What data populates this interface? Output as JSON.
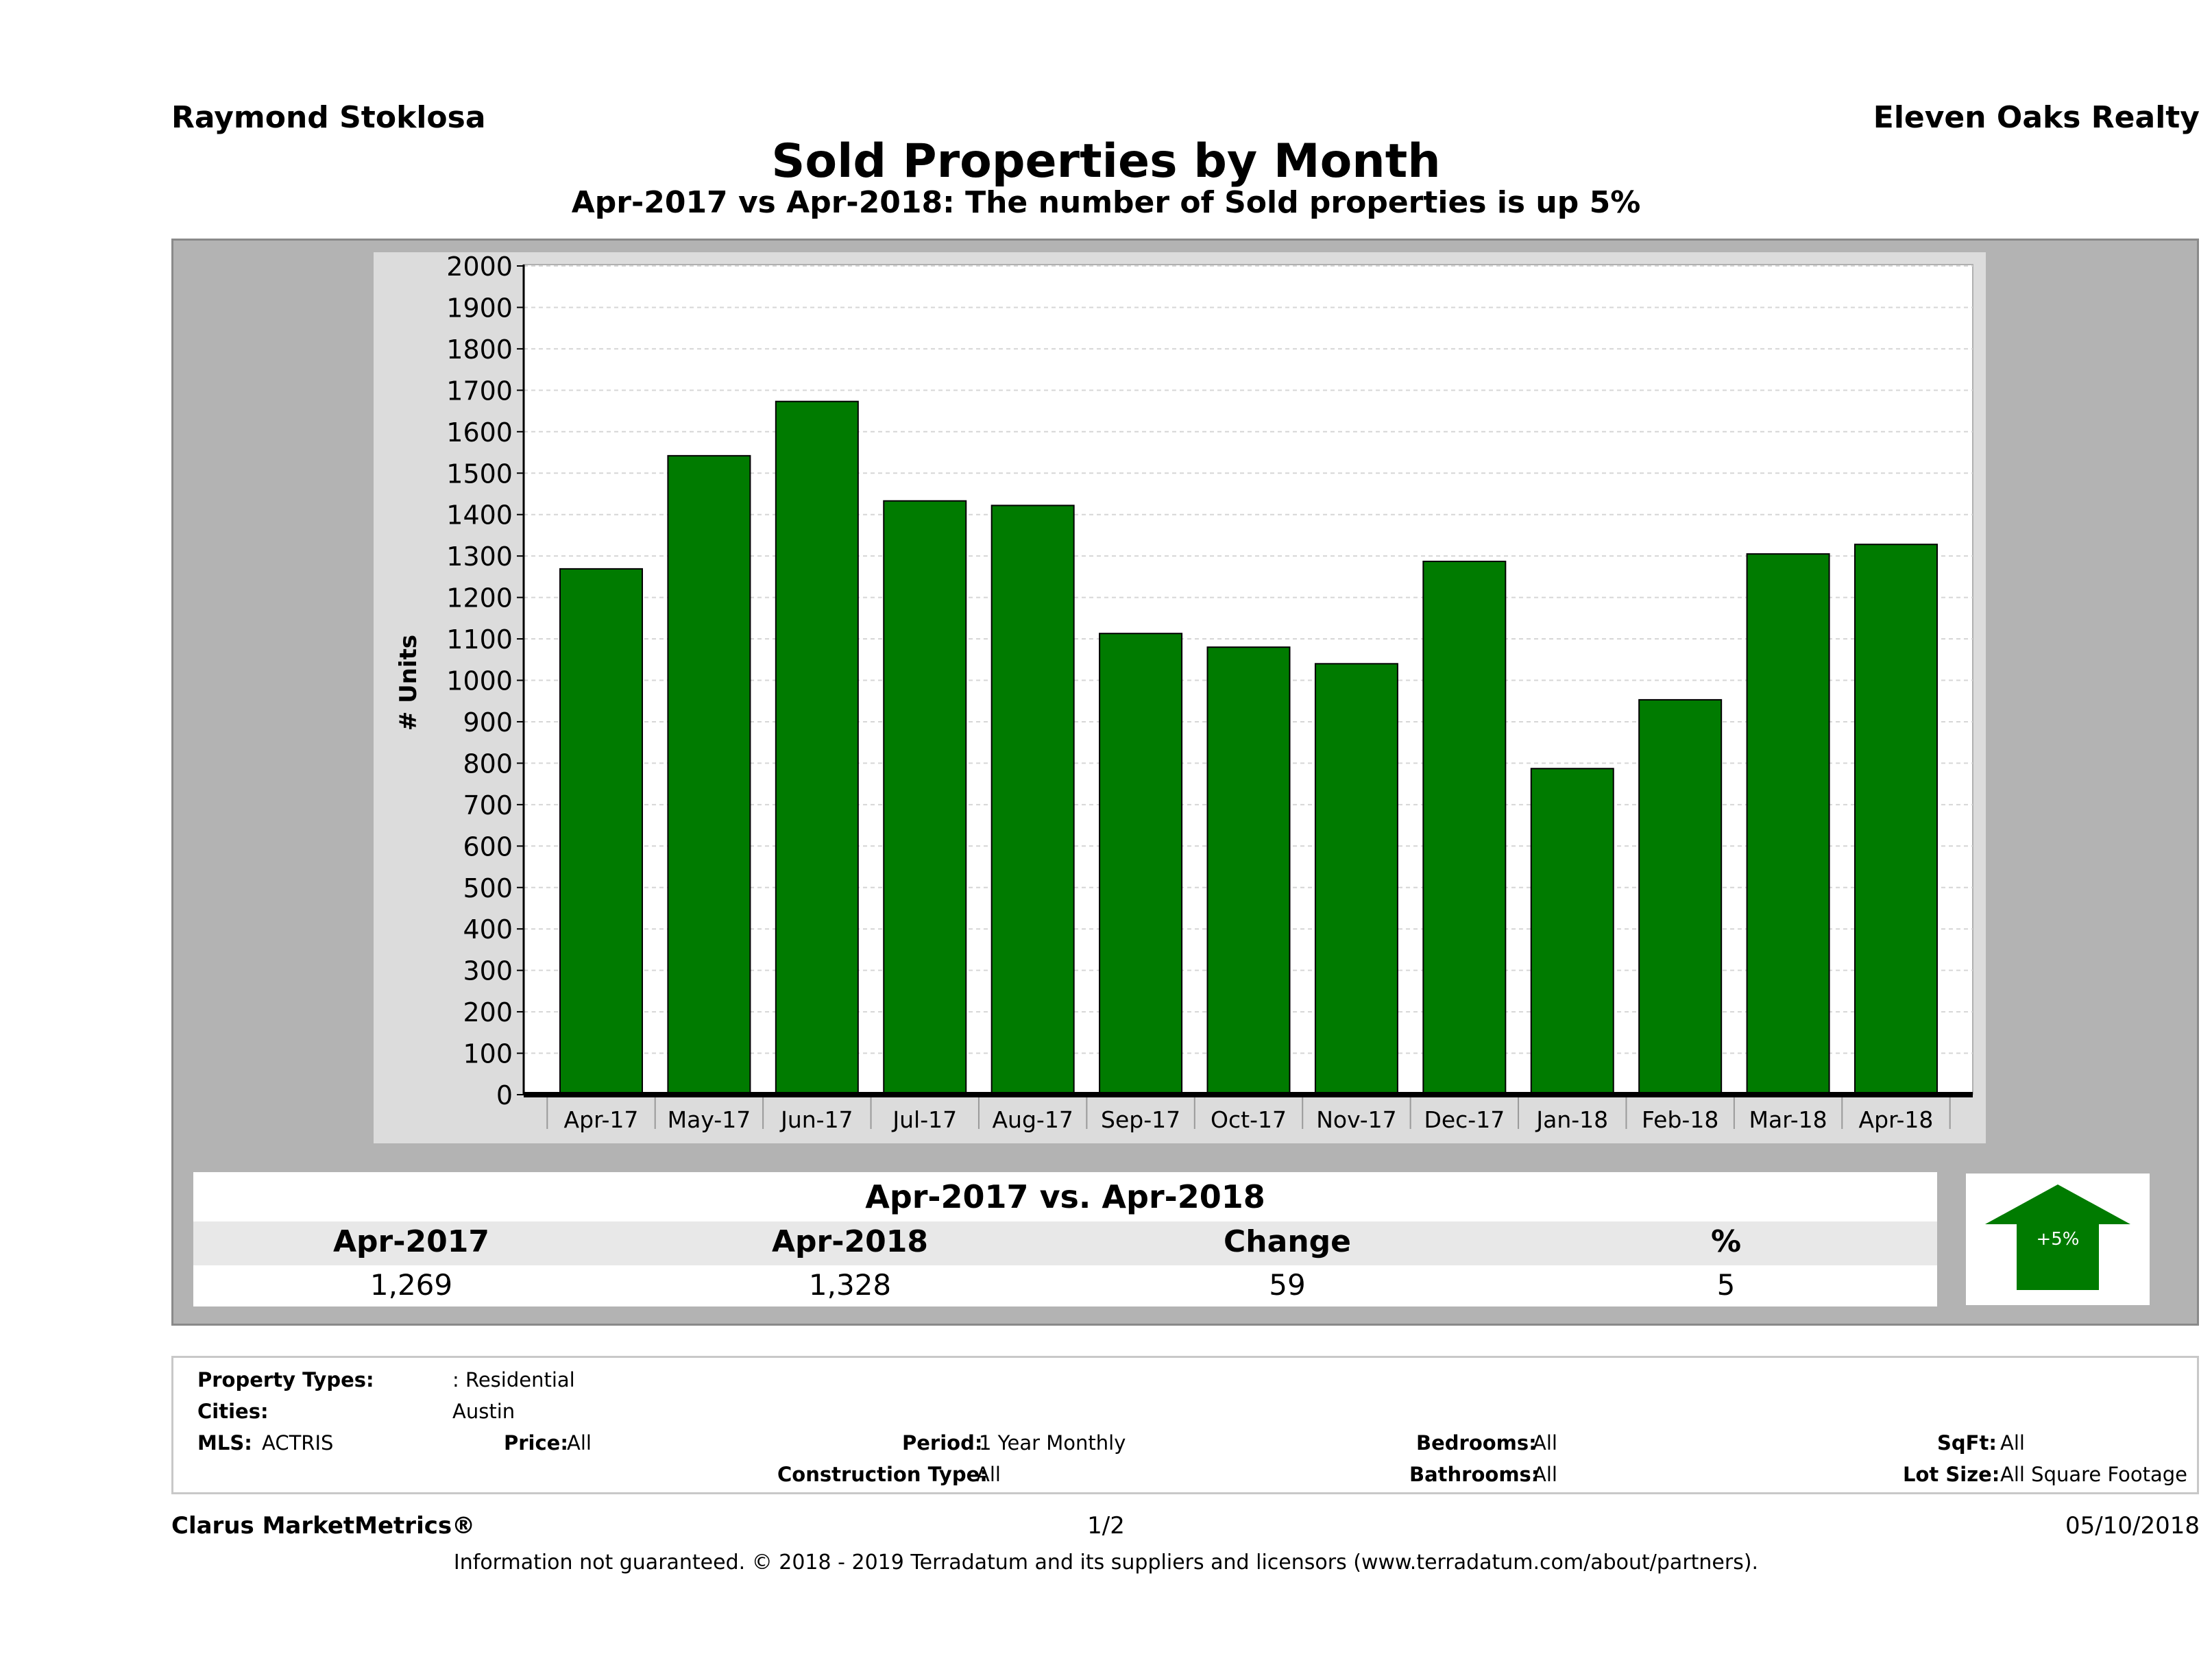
{
  "header": {
    "agent": "Raymond Stoklosa",
    "brand": "Eleven Oaks Realty",
    "title": "Sold Properties by Month",
    "subtitle": "Apr-2017 vs Apr-2018: The number of Sold  properties is up 5%"
  },
  "chart_data": {
    "type": "bar",
    "title": "Sold Properties by Month",
    "ylabel": "# Units",
    "xlabel": "",
    "categories": [
      "Apr-17",
      "May-17",
      "Jun-17",
      "Jul-17",
      "Aug-17",
      "Sep-17",
      "Oct-17",
      "Nov-17",
      "Dec-17",
      "Jan-18",
      "Feb-18",
      "Mar-18",
      "Apr-18"
    ],
    "values": [
      1269,
      1542,
      1673,
      1433,
      1422,
      1113,
      1080,
      1040,
      1287,
      787,
      953,
      1305,
      1328
    ],
    "ylim": [
      0,
      2000
    ],
    "yticks": [
      "0",
      "100",
      "200",
      "300",
      "400",
      "500",
      "600",
      "700",
      "800",
      "900",
      "1000",
      "1100",
      "1200",
      "1300",
      "1400",
      "1500",
      "1600",
      "1700",
      "1800",
      "1900",
      "2000"
    ],
    "grid": true,
    "bar_color": "#007b00"
  },
  "stats": {
    "title": "Apr-2017 vs. Apr-2018",
    "labels": [
      "Apr-2017",
      "Apr-2018",
      "Change",
      "%"
    ],
    "values": [
      "1,269",
      "1,328",
      "59",
      "5"
    ],
    "badge": "+5%",
    "badge_color": "#007b00"
  },
  "filters": {
    "property_types_label": "Property Types:",
    "property_types_value": ": Residential",
    "cities_label": "Cities:",
    "cities_value": "Austin",
    "mls_label": "MLS:",
    "mls_value": "ACTRIS",
    "price_label": "Price:",
    "price_value": "All",
    "period_label": "Period:",
    "period_value": "1 Year Monthly",
    "construction_label": "Construction Type:",
    "construction_value": "All",
    "bedrooms_label": "Bedrooms:",
    "bedrooms_value": "All",
    "bathrooms_label": "Bathrooms:",
    "bathrooms_value": "All",
    "sqft_label": "SqFt:",
    "sqft_value": "All",
    "lot_label": "Lot Size:",
    "lot_value": "All Square Footage"
  },
  "footer": {
    "product": "Clarus MarketMetrics®",
    "page": "1/2",
    "date": "05/10/2018",
    "disclaimer": "Information not guaranteed. © 2018 - 2019 Terradatum and its suppliers and licensors (www.terradatum.com/about/partners)."
  }
}
